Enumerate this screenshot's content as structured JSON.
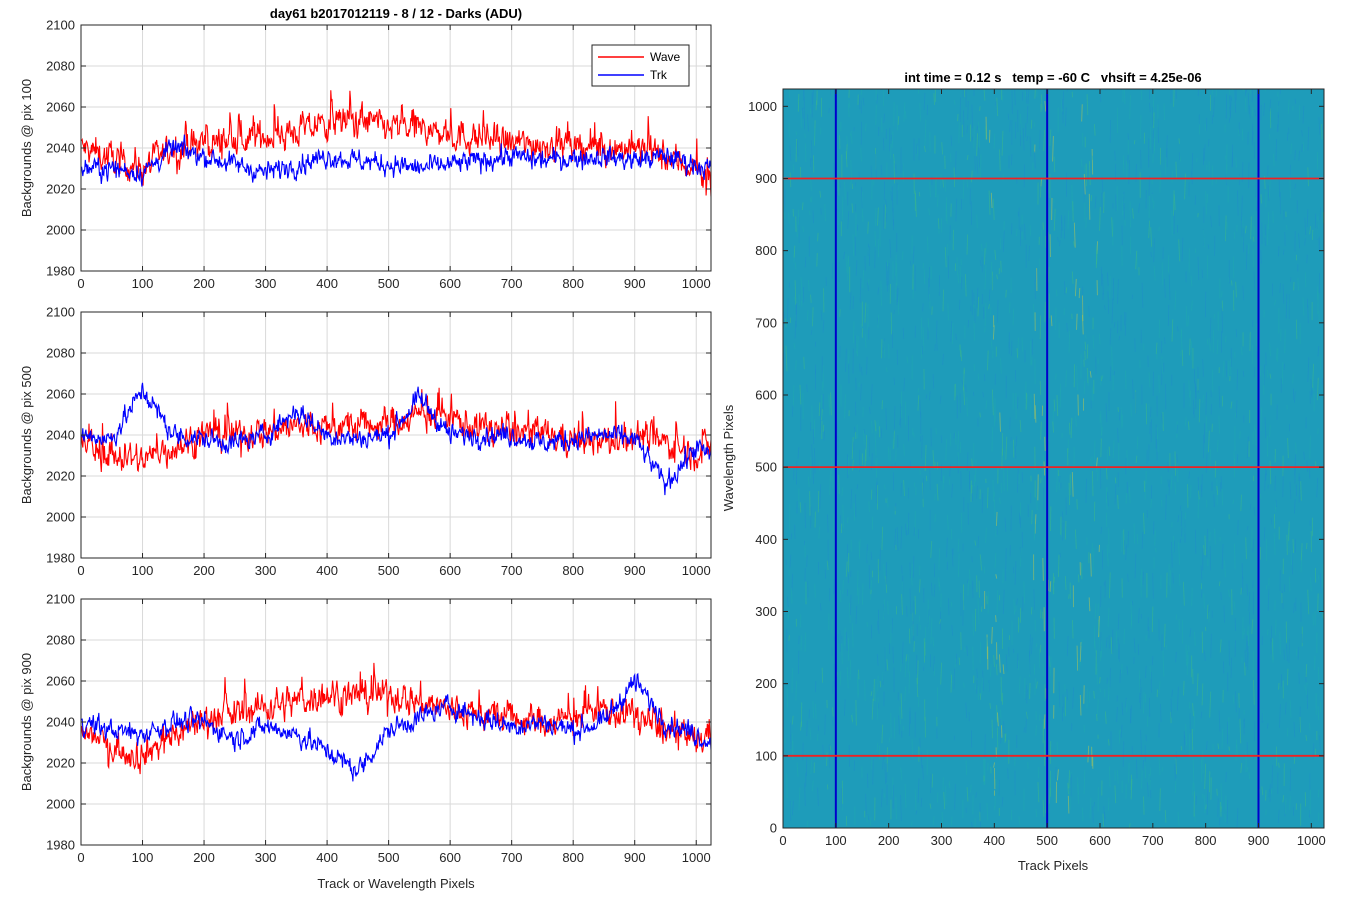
{
  "figure": {
    "title": "day61 b2017012119 - 8 / 12 - Darks (ADU)",
    "colors": {
      "wave": "#ff0000",
      "trk": "#0000ff",
      "grid": "#d9d9d9",
      "axis": "#262626"
    }
  },
  "chart_data": [
    {
      "type": "line",
      "title": "day61 b2017012119 - 8 / 12 - Darks (ADU)",
      "xlabel": "",
      "ylabel": "Backgrounds @ pix 100",
      "xlim": [
        0,
        1024
      ],
      "ylim": [
        1980,
        2100
      ],
      "xticks": [
        0,
        100,
        200,
        300,
        400,
        500,
        600,
        700,
        800,
        900,
        1000
      ],
      "yticks": [
        1980,
        2000,
        2020,
        2040,
        2060,
        2080,
        2100
      ],
      "grid": true,
      "legend": {
        "position": "top-right",
        "entries": [
          "Wave",
          "Trk"
        ]
      },
      "series": [
        {
          "name": "Wave",
          "color": "#ff0000",
          "x": [
            0,
            50,
            100,
            150,
            200,
            250,
            300,
            350,
            400,
            450,
            500,
            550,
            600,
            650,
            700,
            750,
            800,
            850,
            900,
            950,
            1000,
            1023
          ],
          "y": [
            2040,
            2035,
            2030,
            2040,
            2042,
            2044,
            2046,
            2048,
            2052,
            2054,
            2050,
            2050,
            2046,
            2045,
            2042,
            2042,
            2040,
            2040,
            2040,
            2036,
            2030,
            2020
          ]
        },
        {
          "name": "Trk",
          "color": "#0000ff",
          "x": [
            0,
            50,
            100,
            150,
            200,
            250,
            300,
            350,
            400,
            450,
            500,
            550,
            600,
            650,
            700,
            750,
            800,
            850,
            900,
            950,
            1000,
            1023
          ],
          "y": [
            2030,
            2030,
            2028,
            2040,
            2036,
            2032,
            2028,
            2032,
            2036,
            2034,
            2032,
            2030,
            2032,
            2034,
            2036,
            2034,
            2035,
            2036,
            2034,
            2036,
            2032,
            2030
          ]
        }
      ]
    },
    {
      "type": "line",
      "title": "",
      "xlabel": "",
      "ylabel": "Backgrounds @ pix 500",
      "xlim": [
        0,
        1024
      ],
      "ylim": [
        1980,
        2100
      ],
      "xticks": [
        0,
        100,
        200,
        300,
        400,
        500,
        600,
        700,
        800,
        900,
        1000
      ],
      "yticks": [
        1980,
        2000,
        2020,
        2040,
        2060,
        2080,
        2100
      ],
      "grid": true,
      "series": [
        {
          "name": "Wave",
          "color": "#ff0000",
          "x": [
            0,
            50,
            100,
            150,
            200,
            250,
            300,
            350,
            400,
            450,
            500,
            550,
            600,
            650,
            700,
            750,
            800,
            850,
            900,
            950,
            1000,
            1023
          ],
          "y": [
            2036,
            2030,
            2028,
            2034,
            2040,
            2040,
            2042,
            2044,
            2044,
            2044,
            2046,
            2050,
            2048,
            2044,
            2042,
            2040,
            2038,
            2036,
            2040,
            2036,
            2032,
            2035
          ]
        },
        {
          "name": "Trk",
          "color": "#0000ff",
          "x": [
            0,
            50,
            100,
            150,
            200,
            250,
            300,
            350,
            400,
            450,
            500,
            550,
            600,
            650,
            700,
            750,
            800,
            850,
            900,
            950,
            1000,
            1023
          ],
          "y": [
            2040,
            2038,
            2062,
            2040,
            2038,
            2036,
            2040,
            2052,
            2040,
            2038,
            2040,
            2058,
            2040,
            2040,
            2040,
            2036,
            2038,
            2040,
            2038,
            2016,
            2034,
            2030
          ]
        }
      ]
    },
    {
      "type": "line",
      "title": "",
      "xlabel": "Track or Wavelength Pixels",
      "ylabel": "Backgrounds @ pix 900",
      "xlim": [
        0,
        1024
      ],
      "ylim": [
        1980,
        2100
      ],
      "xticks": [
        0,
        100,
        200,
        300,
        400,
        500,
        600,
        700,
        800,
        900,
        1000
      ],
      "yticks": [
        1980,
        2000,
        2020,
        2040,
        2060,
        2080,
        2100
      ],
      "grid": true,
      "series": [
        {
          "name": "Wave",
          "color": "#ff0000",
          "x": [
            0,
            50,
            100,
            150,
            200,
            250,
            300,
            350,
            400,
            450,
            500,
            550,
            600,
            650,
            700,
            750,
            800,
            850,
            900,
            950,
            1000,
            1023
          ],
          "y": [
            2036,
            2028,
            2024,
            2034,
            2042,
            2044,
            2048,
            2050,
            2054,
            2052,
            2054,
            2050,
            2046,
            2044,
            2042,
            2040,
            2042,
            2046,
            2044,
            2036,
            2030,
            2035
          ]
        },
        {
          "name": "Trk",
          "color": "#0000ff",
          "x": [
            0,
            50,
            100,
            150,
            200,
            250,
            300,
            350,
            400,
            450,
            500,
            550,
            600,
            650,
            700,
            750,
            800,
            850,
            900,
            950,
            1000,
            1023
          ],
          "y": [
            2040,
            2036,
            2034,
            2040,
            2040,
            2032,
            2038,
            2034,
            2026,
            2016,
            2036,
            2042,
            2048,
            2042,
            2038,
            2040,
            2036,
            2040,
            2060,
            2040,
            2034,
            2030
          ]
        }
      ]
    },
    {
      "type": "heatmap",
      "title": "int time = 0.12 s   temp = -60 C   vhsift = 4.25e-06",
      "xlabel": "Track Pixels",
      "ylabel": "Wavelength Pixels",
      "xlim": [
        0,
        1024
      ],
      "ylim": [
        0,
        1024
      ],
      "xticks": [
        0,
        100,
        200,
        300,
        400,
        500,
        600,
        700,
        800,
        900,
        1000
      ],
      "yticks": [
        0,
        100,
        200,
        300,
        400,
        500,
        600,
        700,
        800,
        900,
        1000
      ],
      "grid": false,
      "colormap": [
        "#0f5aa8",
        "#1e8fc8",
        "#20a8b0",
        "#3bb88a",
        "#b8c850"
      ],
      "background_color": "#1e9cba",
      "bright_bands_x": [
        [
          470,
          520
        ],
        [
          540,
          600
        ],
        [
          380,
          420
        ]
      ],
      "markers": {
        "vertical_lines": {
          "color": "#0000cc",
          "x": [
            100,
            500,
            900
          ]
        },
        "horizontal_lines": {
          "color": "#ee2222",
          "y": [
            100,
            500,
            900
          ]
        }
      }
    }
  ]
}
